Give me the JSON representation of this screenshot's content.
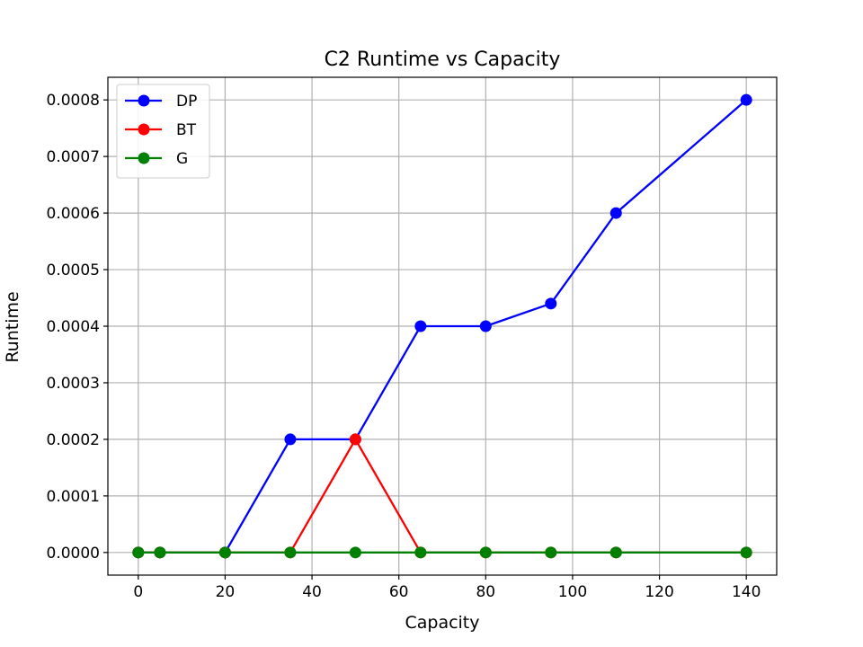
{
  "chart_data": {
    "type": "line",
    "title": "C2 Runtime vs Capacity",
    "xlabel": "Capacity",
    "ylabel": "Runtime",
    "x": [
      0,
      5,
      20,
      35,
      50,
      65,
      80,
      95,
      110,
      140
    ],
    "xlim": [
      -7,
      147
    ],
    "ylim": [
      -4e-05,
      0.00084
    ],
    "xticks": [
      0,
      20,
      40,
      60,
      80,
      100,
      120,
      140
    ],
    "xtick_labels": [
      "0",
      "20",
      "40",
      "60",
      "80",
      "100",
      "120",
      "140"
    ],
    "yticks": [
      0,
      0.0001,
      0.0002,
      0.0003,
      0.0004,
      0.0005,
      0.0006,
      0.0007,
      0.0008
    ],
    "ytick_labels": [
      "0.0000",
      "0.0001",
      "0.0002",
      "0.0003",
      "0.0004",
      "0.0005",
      "0.0006",
      "0.0007",
      "0.0008"
    ],
    "grid": true,
    "legend_position": "top-left",
    "series": [
      {
        "name": "DP",
        "color": "#0000ff",
        "values": [
          0,
          0,
          0,
          0.0002,
          0.0002,
          0.0004,
          0.0004,
          0.00044,
          0.0006,
          0.0008
        ]
      },
      {
        "name": "BT",
        "color": "#ff0000",
        "values": [
          0,
          0,
          0,
          0,
          0.0002,
          0,
          0,
          0,
          0,
          0
        ]
      },
      {
        "name": "G",
        "color": "#008000",
        "values": [
          0,
          0,
          0,
          0,
          0,
          0,
          0,
          0,
          0,
          0
        ]
      }
    ]
  }
}
